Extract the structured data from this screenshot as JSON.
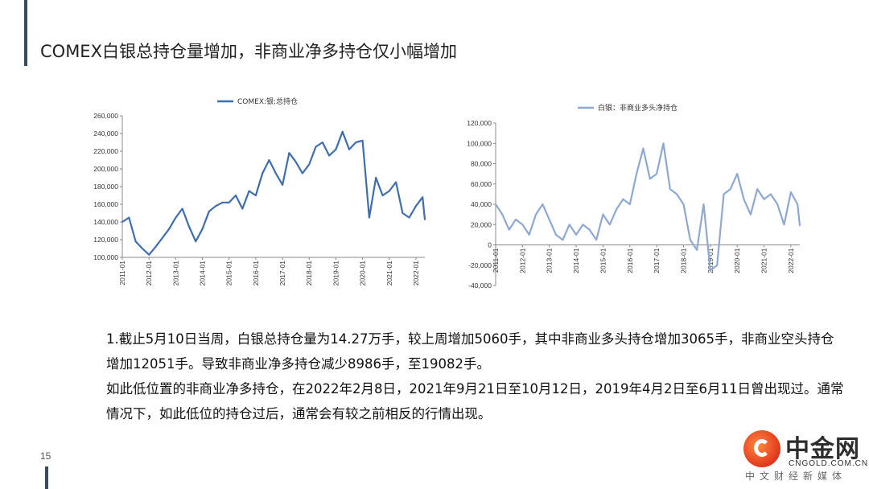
{
  "slide": {
    "title": "COMEX白银总持仓量增加，非商业净多持仓仅小幅增加",
    "page_number": "15",
    "paragraphs": [
      "1.截止5月10日当周，白银总持仓量为14.27万手，较上周增加5060手，其中非商业多头持仓增加3065手，非商业空头持仓增加12051手。导致非商业净多持仓减少8986手，至19082手。",
      "如此低位置的非商业净多持仓，在2022年2月8日，2021年9月21日至10月12日，2019年4月2日至6月11日曾出现过。通常情况下，如此低位的持仓过后，通常会有较之前相反的行情出现。"
    ]
  },
  "logo": {
    "name": "中金网",
    "url": "CNGOLD.COM.CN",
    "tagline": "中文财经新媒体"
  },
  "colors": {
    "left_series": "#3e6db0",
    "right_series": "#8ea8d2",
    "accent_bar": "#3a4a5e"
  },
  "chart_data": [
    {
      "type": "line",
      "legend": [
        "COMEX:银:总持仓"
      ],
      "legend_position": "top",
      "grid": false,
      "ylim": [
        100000,
        260000
      ],
      "yticks": [
        "100,000",
        "120,000",
        "140,000",
        "160,000",
        "180,000",
        "200,000",
        "220,000",
        "240,000",
        "260,000"
      ],
      "xticks": [
        "2011-01",
        "2012-01",
        "2013-01",
        "2014-01",
        "2015-01",
        "2016-01",
        "2017-01",
        "2018-01",
        "2019-01",
        "2020-01",
        "2021-01",
        "2022-01"
      ],
      "series": [
        {
          "name": "COMEX:银:总持仓",
          "x": [
            "2011-01",
            "2011-04",
            "2011-07",
            "2011-10",
            "2012-01",
            "2012-04",
            "2012-07",
            "2012-10",
            "2013-01",
            "2013-04",
            "2013-07",
            "2013-10",
            "2014-01",
            "2014-04",
            "2014-07",
            "2014-10",
            "2015-01",
            "2015-04",
            "2015-07",
            "2015-10",
            "2016-01",
            "2016-04",
            "2016-07",
            "2016-10",
            "2017-01",
            "2017-04",
            "2017-07",
            "2017-10",
            "2018-01",
            "2018-04",
            "2018-07",
            "2018-10",
            "2019-01",
            "2019-04",
            "2019-07",
            "2019-10",
            "2020-01",
            "2020-04",
            "2020-07",
            "2020-10",
            "2021-01",
            "2021-04",
            "2021-07",
            "2021-10",
            "2022-01",
            "2022-04",
            "2022-05"
          ],
          "values": [
            140000,
            145000,
            118000,
            110000,
            103000,
            112000,
            122000,
            132000,
            145000,
            155000,
            135000,
            118000,
            132000,
            152000,
            158000,
            162000,
            162000,
            170000,
            155000,
            175000,
            170000,
            195000,
            210000,
            195000,
            182000,
            218000,
            208000,
            195000,
            205000,
            225000,
            230000,
            215000,
            222000,
            242000,
            222000,
            230000,
            232000,
            145000,
            190000,
            170000,
            175000,
            185000,
            150000,
            145000,
            158000,
            168000,
            142700
          ]
        }
      ]
    },
    {
      "type": "line",
      "legend": [
        "白银：非商业多头净持仓"
      ],
      "legend_position": "top",
      "grid": false,
      "ylim": [
        -40000,
        120000
      ],
      "yticks": [
        "-40,000",
        "-20,000",
        "0",
        "20,000",
        "40,000",
        "60,000",
        "80,000",
        "100,000",
        "120,000"
      ],
      "xticks": [
        "2011-01",
        "2012-01",
        "2013-01",
        "2014-01",
        "2015-01",
        "2016-01",
        "2017-01",
        "2018-01",
        "2019-01",
        "2020-01",
        "2021-01",
        "2022-01"
      ],
      "series": [
        {
          "name": "白银：非商业多头净持仓",
          "x": [
            "2011-01",
            "2011-04",
            "2011-07",
            "2011-10",
            "2012-01",
            "2012-04",
            "2012-07",
            "2012-10",
            "2013-01",
            "2013-04",
            "2013-07",
            "2013-10",
            "2014-01",
            "2014-04",
            "2014-07",
            "2014-10",
            "2015-01",
            "2015-04",
            "2015-07",
            "2015-10",
            "2016-01",
            "2016-04",
            "2016-07",
            "2016-10",
            "2017-01",
            "2017-04",
            "2017-07",
            "2017-10",
            "2018-01",
            "2018-04",
            "2018-07",
            "2018-10",
            "2019-01",
            "2019-04",
            "2019-07",
            "2019-10",
            "2020-01",
            "2020-04",
            "2020-07",
            "2020-10",
            "2021-01",
            "2021-04",
            "2021-07",
            "2021-10",
            "2022-01",
            "2022-04",
            "2022-05"
          ],
          "values": [
            40000,
            30000,
            15000,
            25000,
            20000,
            10000,
            30000,
            40000,
            25000,
            10000,
            5000,
            20000,
            10000,
            20000,
            15000,
            5000,
            30000,
            20000,
            35000,
            45000,
            40000,
            70000,
            95000,
            65000,
            70000,
            100000,
            55000,
            50000,
            40000,
            5000,
            -5000,
            40000,
            -25000,
            -20000,
            50000,
            55000,
            70000,
            45000,
            30000,
            55000,
            45000,
            50000,
            40000,
            20000,
            52000,
            40000,
            19082
          ]
        }
      ]
    }
  ]
}
